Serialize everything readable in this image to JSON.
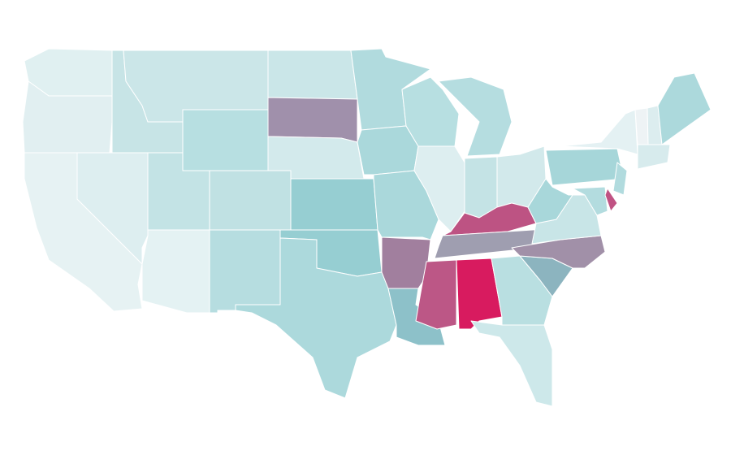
{
  "map": {
    "regions": [
      {
        "color": "#e0f0f1"
      },
      {
        "color": "#e1eff1"
      },
      {
        "color": "#e6f2f3"
      },
      {
        "color": "#ddeef0"
      },
      {
        "color": "#c7e4e6"
      },
      {
        "color": "#cbe6e8"
      },
      {
        "color": "#b7dfe1"
      },
      {
        "color": "#c3e3e5"
      },
      {
        "color": "#e4f2f3"
      },
      {
        "color": "#c0e1e3"
      },
      {
        "color": "#b6dde0"
      },
      {
        "color": "#cae6e8"
      },
      {
        "color": "#a090ab"
      },
      {
        "color": "#d3eaec"
      },
      {
        "color": "#96ced2"
      },
      {
        "color": "#96ced2"
      },
      {
        "color": "#acd9dc"
      },
      {
        "color": "#b1dbde"
      },
      {
        "color": "#aad8db"
      },
      {
        "color": "#aad8db"
      },
      {
        "color": "#a17f9e"
      },
      {
        "color": "#8dc1c9"
      },
      {
        "color": "#b7dfe1"
      },
      {
        "color": "#ddeef0"
      },
      {
        "color": "#b5dde0"
      },
      {
        "color": "#c4e3e5"
      },
      {
        "color": "#d2e9eb"
      },
      {
        "color": "#bd5383"
      },
      {
        "color": "#9f9eb0"
      },
      {
        "color": "#bc5786"
      },
      {
        "color": "#d81b5f"
      },
      {
        "color": "#b9dfe1"
      },
      {
        "color": "#cde8ea"
      },
      {
        "color": "#8cb4bf"
      },
      {
        "color": "#a190a8"
      },
      {
        "color": "#c8e5e7"
      },
      {
        "color": "#a8d7da"
      },
      {
        "color": "#a6d6d9"
      },
      {
        "color": "#e4f1f3"
      },
      {
        "color": "#eef3f5"
      },
      {
        "color": "#dcedef"
      },
      {
        "color": "#acd9dc"
      },
      {
        "color": "#d7ebed"
      },
      {
        "color": "#b1dbde"
      },
      {
        "color": "#b3dcdf"
      },
      {
        "color": "#c05283"
      }
    ]
  }
}
